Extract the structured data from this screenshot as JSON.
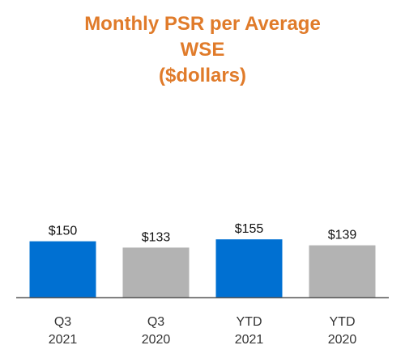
{
  "chart_data": {
    "type": "bar",
    "title_lines": [
      "Monthly PSR per Average",
      "WSE",
      "($dollars)"
    ],
    "categories": [
      [
        "Q3",
        "2021"
      ],
      [
        "Q3",
        "2020"
      ],
      [
        "YTD",
        "2021"
      ],
      [
        "YTD",
        "2020"
      ]
    ],
    "values": [
      150,
      133,
      155,
      139
    ],
    "value_labels": [
      "$150",
      "$133",
      "$155",
      "$139"
    ],
    "bar_colors": [
      "#0070d2",
      "#b3b3b3",
      "#0070d2",
      "#b3b3b3"
    ],
    "axis_line_color": "#595959",
    "title_color": "#e07b2a"
  }
}
